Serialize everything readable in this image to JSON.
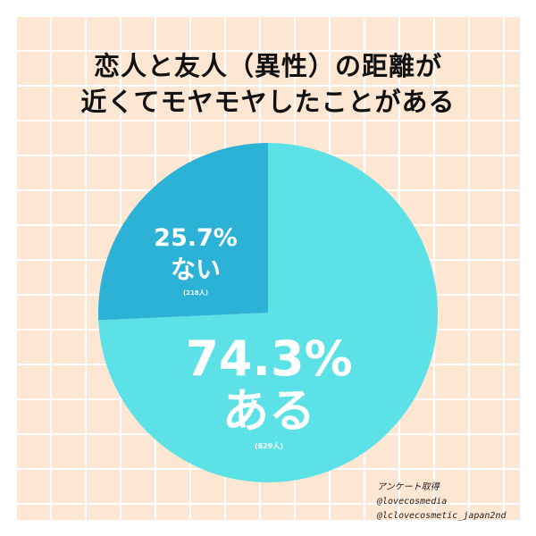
{
  "title": {
    "line1": "恋人と友人（異性）の距離が",
    "line2": "近くてモヤモヤしたことがある"
  },
  "chart_data": {
    "type": "pie",
    "title": "恋人と友人（異性）の距離が近くてモヤモヤしたことがある",
    "slices": [
      {
        "label": "ある",
        "percent": "74.3%",
        "value": 74.3,
        "count": "(629人)",
        "color": "#5ce1e6"
      },
      {
        "label": "ない",
        "percent": "25.7%",
        "value": 25.7,
        "count": "(218人)",
        "color": "#2cb1d7"
      }
    ]
  },
  "credits": {
    "survey": "アンケート取得",
    "account1": "@lovecosmedia",
    "account2": "@lclovecosmetic_japan2nd"
  },
  "colors": {
    "border": "#a7c5d3",
    "background": "#fde7d3",
    "grid": "#ffffff"
  }
}
